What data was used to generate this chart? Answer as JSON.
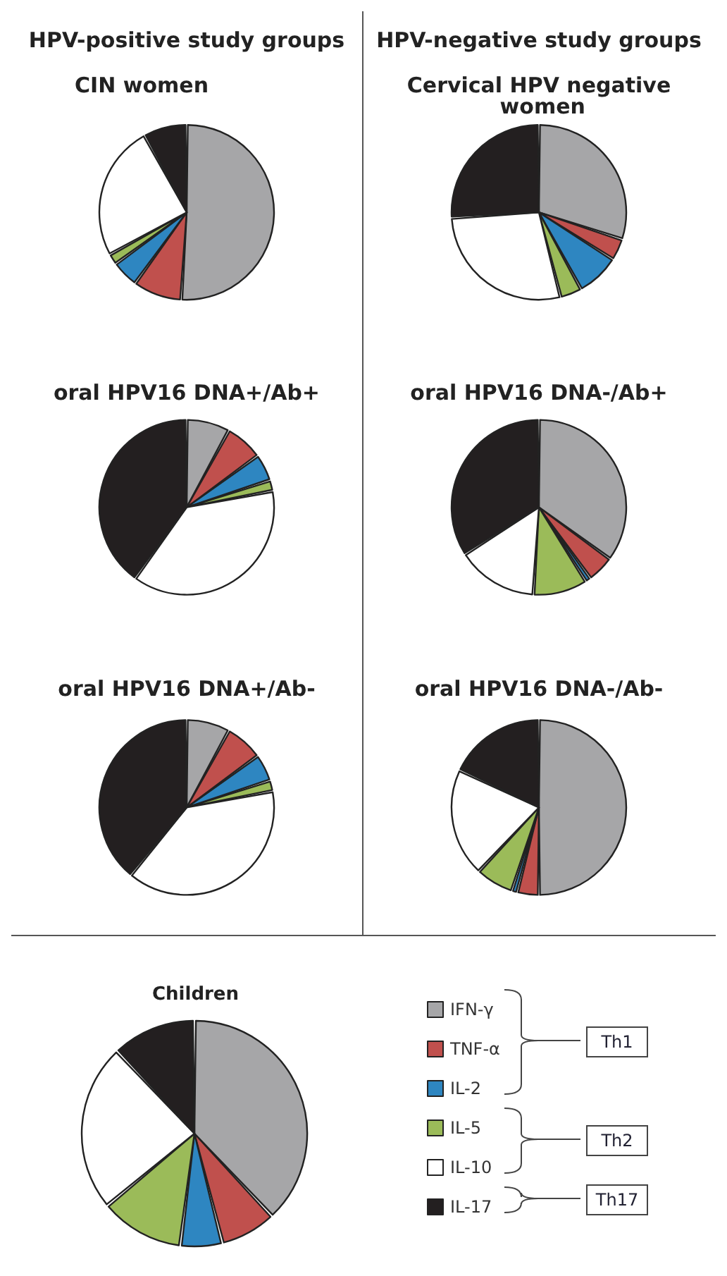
{
  "chart_data": [
    {
      "type": "pie",
      "title": "HPV-positive study groups",
      "subtitle": "CIN women",
      "categories": [
        null,
        null,
        null,
        null,
        null,
        null
      ],
      "values": [
        51,
        9,
        5,
        2,
        25,
        8
      ],
      "colors": [
        "#a6a6a8",
        "#c0504d",
        "#2e86c1",
        "#9bbb59",
        "#ffffff",
        "#231f20"
      ]
    },
    {
      "type": "pie",
      "title": "HPV-negative study groups",
      "subtitle": "Cervical HPV negative women",
      "categories": [
        null,
        null,
        null,
        null,
        null,
        null
      ],
      "values": [
        30,
        4,
        8,
        4,
        28,
        26
      ],
      "colors": [
        "#a6a6a8",
        "#c0504d",
        "#2e86c1",
        "#9bbb59",
        "#ffffff",
        "#231f20"
      ]
    },
    {
      "type": "pie",
      "title": "oral HPV16 DNA+/Ab+",
      "categories": [
        null,
        null,
        null,
        null,
        null,
        null
      ],
      "values": [
        8,
        7,
        5,
        2,
        38,
        40
      ],
      "colors": [
        "#a6a6a8",
        "#c0504d",
        "#2e86c1",
        "#9bbb59",
        "#ffffff",
        "#231f20"
      ]
    },
    {
      "type": "pie",
      "title": "oral HPV16 DNA-/Ab+",
      "categories": [
        null,
        null,
        null,
        null,
        null,
        null
      ],
      "values": [
        35,
        5,
        1,
        10,
        15,
        34
      ],
      "colors": [
        "#a6a6a8",
        "#c0504d",
        "#2e86c1",
        "#9bbb59",
        "#ffffff",
        "#231f20"
      ]
    },
    {
      "type": "pie",
      "title": "oral HPV16 DNA+/Ab-",
      "categories": [
        null,
        null,
        null,
        null,
        null,
        null
      ],
      "values": [
        8,
        7,
        5,
        2,
        39,
        39
      ],
      "colors": [
        "#a6a6a8",
        "#c0504d",
        "#2e86c1",
        "#9bbb59",
        "#ffffff",
        "#231f20"
      ]
    },
    {
      "type": "pie",
      "title": "oral HPV16 DNA-/Ab-",
      "categories": [
        null,
        null,
        null,
        null,
        null,
        null
      ],
      "values": [
        50,
        4,
        1,
        7,
        20,
        18
      ],
      "colors": [
        "#a6a6a8",
        "#c0504d",
        "#2e86c1",
        "#9bbb59",
        "#ffffff",
        "#231f20"
      ]
    },
    {
      "type": "pie",
      "title": "Children",
      "categories": [
        "IFN-γ",
        "TNF-α",
        "IL-2",
        "IL-5",
        "IL-10",
        "IL-17"
      ],
      "values": [
        38,
        8,
        6,
        12,
        24,
        12
      ],
      "colors": [
        "#a6a6a8",
        "#c0504d",
        "#2e86c1",
        "#9bbb59",
        "#ffffff",
        "#231f20"
      ],
      "legend": "right",
      "annotations": [
        "Th1",
        "Th2",
        "Th17"
      ]
    }
  ]
}
